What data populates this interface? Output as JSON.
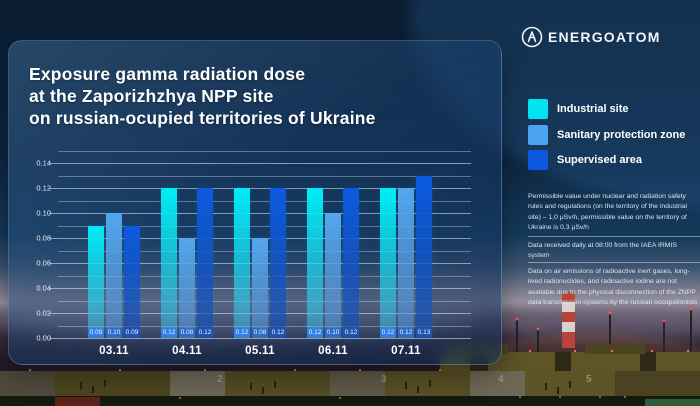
{
  "brand": {
    "logo_text": "ENERGOATOM"
  },
  "title": {
    "line1": "Exposure gamma radiation dose",
    "line2": "at the Zaporizhzhya NPP site",
    "line3": "on russian-ocupied territories of Ukraine"
  },
  "legend": [
    {
      "label": "Industrial site",
      "color": "#00e4f2"
    },
    {
      "label": "Sanitary protection zone",
      "color": "#4da3ef"
    },
    {
      "label": "Supervised area",
      "color": "#0b57dd"
    }
  ],
  "chart_data": {
    "type": "bar",
    "title": "Exposure gamma radiation dose at the Zaporizhzhya NPP site on russian-ocupied territories of Ukraine",
    "categories": [
      "03.11",
      "04.11",
      "05.11",
      "06.11",
      "07.11"
    ],
    "series": [
      {
        "name": "Industrial site",
        "color": "#00eef8",
        "color_bottom": "rgba(80,185,230,0.50)",
        "label_bg": "#3380e8",
        "values": [
          0.09,
          0.12,
          0.12,
          0.12,
          0.12
        ]
      },
      {
        "name": "Sanitary protection zone",
        "color": "#55a8f0",
        "color_bottom": "rgba(90,150,215,0.55)",
        "label_bg": "#2e6cc9",
        "values": [
          0.1,
          0.08,
          0.08,
          0.1,
          0.12
        ]
      },
      {
        "name": "Supervised area",
        "color": "#0b5ae0",
        "color_bottom": "rgba(25,80,175,0.68)",
        "label_bg": "#2152b0",
        "values": [
          0.09,
          0.12,
          0.12,
          0.12,
          0.13
        ]
      }
    ],
    "ylim": [
      0,
      0.15
    ],
    "ytick_step": 0.01,
    "ylabel_step": 0.02,
    "ylabel_max": 0.14,
    "grid": true,
    "legend_position": "right"
  },
  "info_blocks": [
    {
      "text": "Permissible value under nuclear and radiation safety rules and regulations (on the territory of the industrial site) – 1,0 μSv/h, permissible value on the territory of Ukraine is 0,3 μSv/h"
    },
    {
      "text": "Data received daily at 08:00 from the IAEA IRMIS system"
    },
    {
      "text": "Data on air emissions of radioactive inert gases, long-lived radionuclides, and radioactive iodine are not available due to the physical disconnection of the ZNPP data transmission systems by the russian occupationists"
    }
  ],
  "background": {
    "unit_labels": [
      "2",
      "3",
      "4",
      "5"
    ]
  }
}
